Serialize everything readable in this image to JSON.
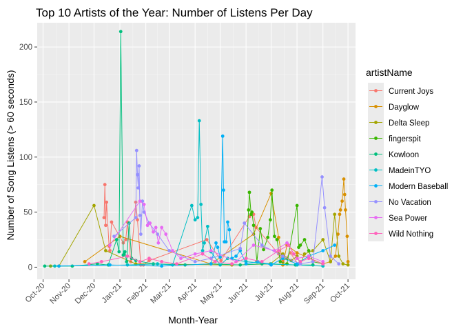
{
  "chart_data": {
    "type": "line",
    "title": "Top 10 Artists of the Year: Number of Listens Per Day",
    "xlabel": "Month-Year",
    "ylabel": "Number of Song Listens (> 60 seconds)",
    "x_tick_labels": [
      "Oct-20",
      "Nov-20",
      "Dec-20",
      "Jan-21",
      "Feb-21",
      "Mar-21",
      "Apr-21",
      "May-21",
      "Jun-21",
      "Jul-21",
      "Aug-21",
      "Sep-21",
      "Oct-21"
    ],
    "x_tick_values": [
      "2020-10-01",
      "2020-11-01",
      "2020-12-01",
      "2021-01-01",
      "2021-02-01",
      "2021-03-01",
      "2021-04-01",
      "2021-05-01",
      "2021-06-01",
      "2021-07-01",
      "2021-08-01",
      "2021-09-01",
      "2021-10-01"
    ],
    "xlim": [
      "2020-09-24",
      "2021-10-10"
    ],
    "y_ticks": [
      0,
      50,
      100,
      150,
      200
    ],
    "ylim": [
      -11,
      222
    ],
    "grid": true,
    "legend_title": "artistName",
    "legend_position": "right",
    "series": [
      {
        "name": "Current Joys",
        "color": "#F8766D",
        "x": [
          "2020-12-13",
          "2020-12-14",
          "2020-12-15",
          "2020-12-16",
          "2020-12-19",
          "2020-12-20",
          "2020-12-22",
          "2021-01-05",
          "2021-01-08",
          "2021-01-10",
          "2021-01-14",
          "2021-01-20",
          "2021-01-22",
          "2021-01-26",
          "2021-01-29",
          "2021-02-05",
          "2021-04-15",
          "2021-05-02",
          "2021-06-05",
          "2021-06-10",
          "2021-06-13",
          "2021-07-10",
          "2021-07-15",
          "2021-07-24",
          "2021-08-02"
        ],
        "y": [
          45,
          75,
          38,
          59,
          19,
          15,
          41,
          22,
          25,
          41,
          5,
          59,
          43,
          2,
          2,
          6,
          25,
          6,
          46,
          48,
          36,
          12,
          5,
          13,
          3
        ]
      },
      {
        "name": "Dayglow",
        "color": "#D89000",
        "x": [
          "2020-11-20",
          "2021-01-01",
          "2021-04-20",
          "2021-06-10",
          "2021-07-01",
          "2021-07-10",
          "2021-07-15",
          "2021-07-20",
          "2021-08-01",
          "2021-09-01",
          "2021-09-10",
          "2021-09-16",
          "2021-09-19",
          "2021-09-21",
          "2021-09-22",
          "2021-09-24",
          "2021-09-26",
          "2021-09-27",
          "2021-09-28",
          "2021-09-30",
          "2021-10-01"
        ],
        "y": [
          5,
          28,
          3,
          30,
          67,
          27,
          2,
          20,
          13,
          3,
          5,
          10,
          30,
          48,
          52,
          60,
          80,
          66,
          52,
          28,
          5
        ]
      },
      {
        "name": "Delta Sleep",
        "color": "#A3A500",
        "x": [
          "2020-10-10",
          "2020-10-20",
          "2020-12-01",
          "2020-12-15",
          "2021-01-20",
          "2021-05-15",
          "2021-06-30",
          "2021-07-15",
          "2021-07-20",
          "2021-07-25",
          "2021-08-01",
          "2021-08-05",
          "2021-08-10",
          "2021-08-20",
          "2021-09-01",
          "2021-09-10",
          "2021-09-15",
          "2021-09-20",
          "2021-09-25",
          "2021-10-01"
        ],
        "y": [
          1,
          1,
          56,
          15,
          3,
          2,
          3,
          12,
          8,
          6,
          10,
          3,
          12,
          15,
          25,
          5,
          48,
          10,
          3,
          2
        ]
      },
      {
        "name": "fingerspit",
        "color": "#39B600",
        "x": [
          "2021-06-01",
          "2021-06-04",
          "2021-06-05",
          "2021-06-07",
          "2021-06-08",
          "2021-06-10",
          "2021-06-14",
          "2021-06-18",
          "2021-06-22",
          "2021-06-27",
          "2021-06-30",
          "2021-07-02",
          "2021-07-05",
          "2021-07-08",
          "2021-07-12",
          "2021-07-20",
          "2021-08-01",
          "2021-08-03",
          "2021-08-05",
          "2021-08-10",
          "2021-08-15",
          "2021-08-20",
          "2021-09-01"
        ],
        "y": [
          8,
          52,
          68,
          48,
          50,
          38,
          5,
          35,
          16,
          27,
          43,
          70,
          28,
          25,
          5,
          3,
          56,
          18,
          20,
          25,
          15,
          5,
          3
        ]
      },
      {
        "name": "Kowloon",
        "color": "#00BF7D",
        "x": [
          "2020-10-03",
          "2020-11-05",
          "2020-12-05",
          "2020-12-18",
          "2020-12-28",
          "2020-12-31",
          "2021-01-02",
          "2021-01-05",
          "2021-01-06",
          "2021-01-07",
          "2021-01-09",
          "2021-01-12",
          "2021-01-15",
          "2021-01-20",
          "2021-02-10",
          "2021-03-20",
          "2021-04-20",
          "2021-05-25",
          "2021-06-20",
          "2021-07-30",
          "2021-08-20"
        ],
        "y": [
          1,
          1,
          3,
          2,
          25,
          14,
          214,
          11,
          12,
          14,
          5,
          40,
          8,
          6,
          3,
          2,
          3,
          2,
          3,
          2,
          2
        ]
      },
      {
        "name": "MadeinTYO",
        "color": "#00BFC4",
        "x": [
          "2020-10-15",
          "2021-01-10",
          "2021-02-15",
          "2021-03-05",
          "2021-03-28",
          "2021-04-01",
          "2021-04-04",
          "2021-04-06",
          "2021-04-08",
          "2021-04-10",
          "2021-04-12",
          "2021-04-16",
          "2021-04-20",
          "2021-05-01",
          "2021-05-10",
          "2021-06-01",
          "2021-07-01",
          "2021-08-01",
          "2021-09-01"
        ],
        "y": [
          1,
          2,
          3,
          2,
          56,
          43,
          45,
          133,
          57,
          15,
          22,
          37,
          14,
          2,
          8,
          5,
          3,
          2,
          1
        ]
      },
      {
        "name": "Modern Baseball",
        "color": "#00B0F6",
        "x": [
          "2020-10-20",
          "2020-12-20",
          "2021-02-20",
          "2021-04-20",
          "2021-04-26",
          "2021-04-28",
          "2021-05-01",
          "2021-05-04",
          "2021-05-05",
          "2021-05-06",
          "2021-05-08",
          "2021-05-10",
          "2021-05-12",
          "2021-05-15",
          "2021-05-20",
          "2021-05-25",
          "2021-06-01",
          "2021-06-15",
          "2021-07-01",
          "2021-07-15",
          "2021-08-01",
          "2021-08-15",
          "2021-09-01",
          "2021-09-15"
        ],
        "y": [
          1,
          2,
          1,
          3,
          22,
          18,
          9,
          119,
          70,
          23,
          23,
          41,
          34,
          8,
          10,
          15,
          3,
          5,
          2,
          8,
          3,
          10,
          15,
          20
        ]
      },
      {
        "name": "No Vacation",
        "color": "#9590FF",
        "x": [
          "2020-12-25",
          "2021-01-20",
          "2021-01-21",
          "2021-01-22",
          "2021-01-23",
          "2021-01-24",
          "2021-01-25",
          "2021-01-26",
          "2021-01-28",
          "2021-01-30",
          "2021-02-05",
          "2021-02-15",
          "2021-03-01",
          "2021-04-01",
          "2021-04-20",
          "2021-05-25",
          "2021-05-30",
          "2021-06-20",
          "2021-07-15",
          "2021-08-05",
          "2021-08-20",
          "2021-08-31",
          "2021-09-03",
          "2021-09-10",
          "2021-09-20"
        ],
        "y": [
          28,
          45,
          106,
          84,
          72,
          92,
          47,
          30,
          60,
          50,
          40,
          30,
          15,
          5,
          8,
          17,
          40,
          20,
          10,
          3,
          5,
          82,
          54,
          10,
          3
        ]
      },
      {
        "name": "Sea Power",
        "color": "#E76BF3",
        "x": [
          "2020-12-20",
          "2021-01-25",
          "2021-01-30",
          "2021-02-03",
          "2021-02-06",
          "2021-02-10",
          "2021-02-13",
          "2021-02-16",
          "2021-02-20",
          "2021-02-25",
          "2021-03-05",
          "2021-03-15",
          "2021-04-01",
          "2021-04-20",
          "2021-05-20",
          "2021-06-10",
          "2021-07-05",
          "2021-07-20",
          "2021-08-01",
          "2021-08-15",
          "2021-09-01"
        ],
        "y": [
          20,
          60,
          57,
          38,
          40,
          32,
          36,
          22,
          36,
          30,
          15,
          8,
          12,
          15,
          5,
          20,
          15,
          22,
          8,
          10,
          5
        ]
      },
      {
        "name": "Wild Nothing",
        "color": "#FF62BC",
        "x": [
          "2020-11-25",
          "2020-12-10",
          "2021-01-10",
          "2021-01-25",
          "2021-02-05",
          "2021-02-20",
          "2021-03-10",
          "2021-04-10",
          "2021-04-25",
          "2021-05-15",
          "2021-06-01",
          "2021-06-20",
          "2021-07-10",
          "2021-07-22",
          "2021-07-28",
          "2021-08-05",
          "2021-08-15",
          "2021-09-01"
        ],
        "y": [
          3,
          5,
          10,
          5,
          8,
          5,
          3,
          12,
          5,
          3,
          8,
          5,
          15,
          20,
          12,
          5,
          8,
          3
        ]
      }
    ]
  }
}
